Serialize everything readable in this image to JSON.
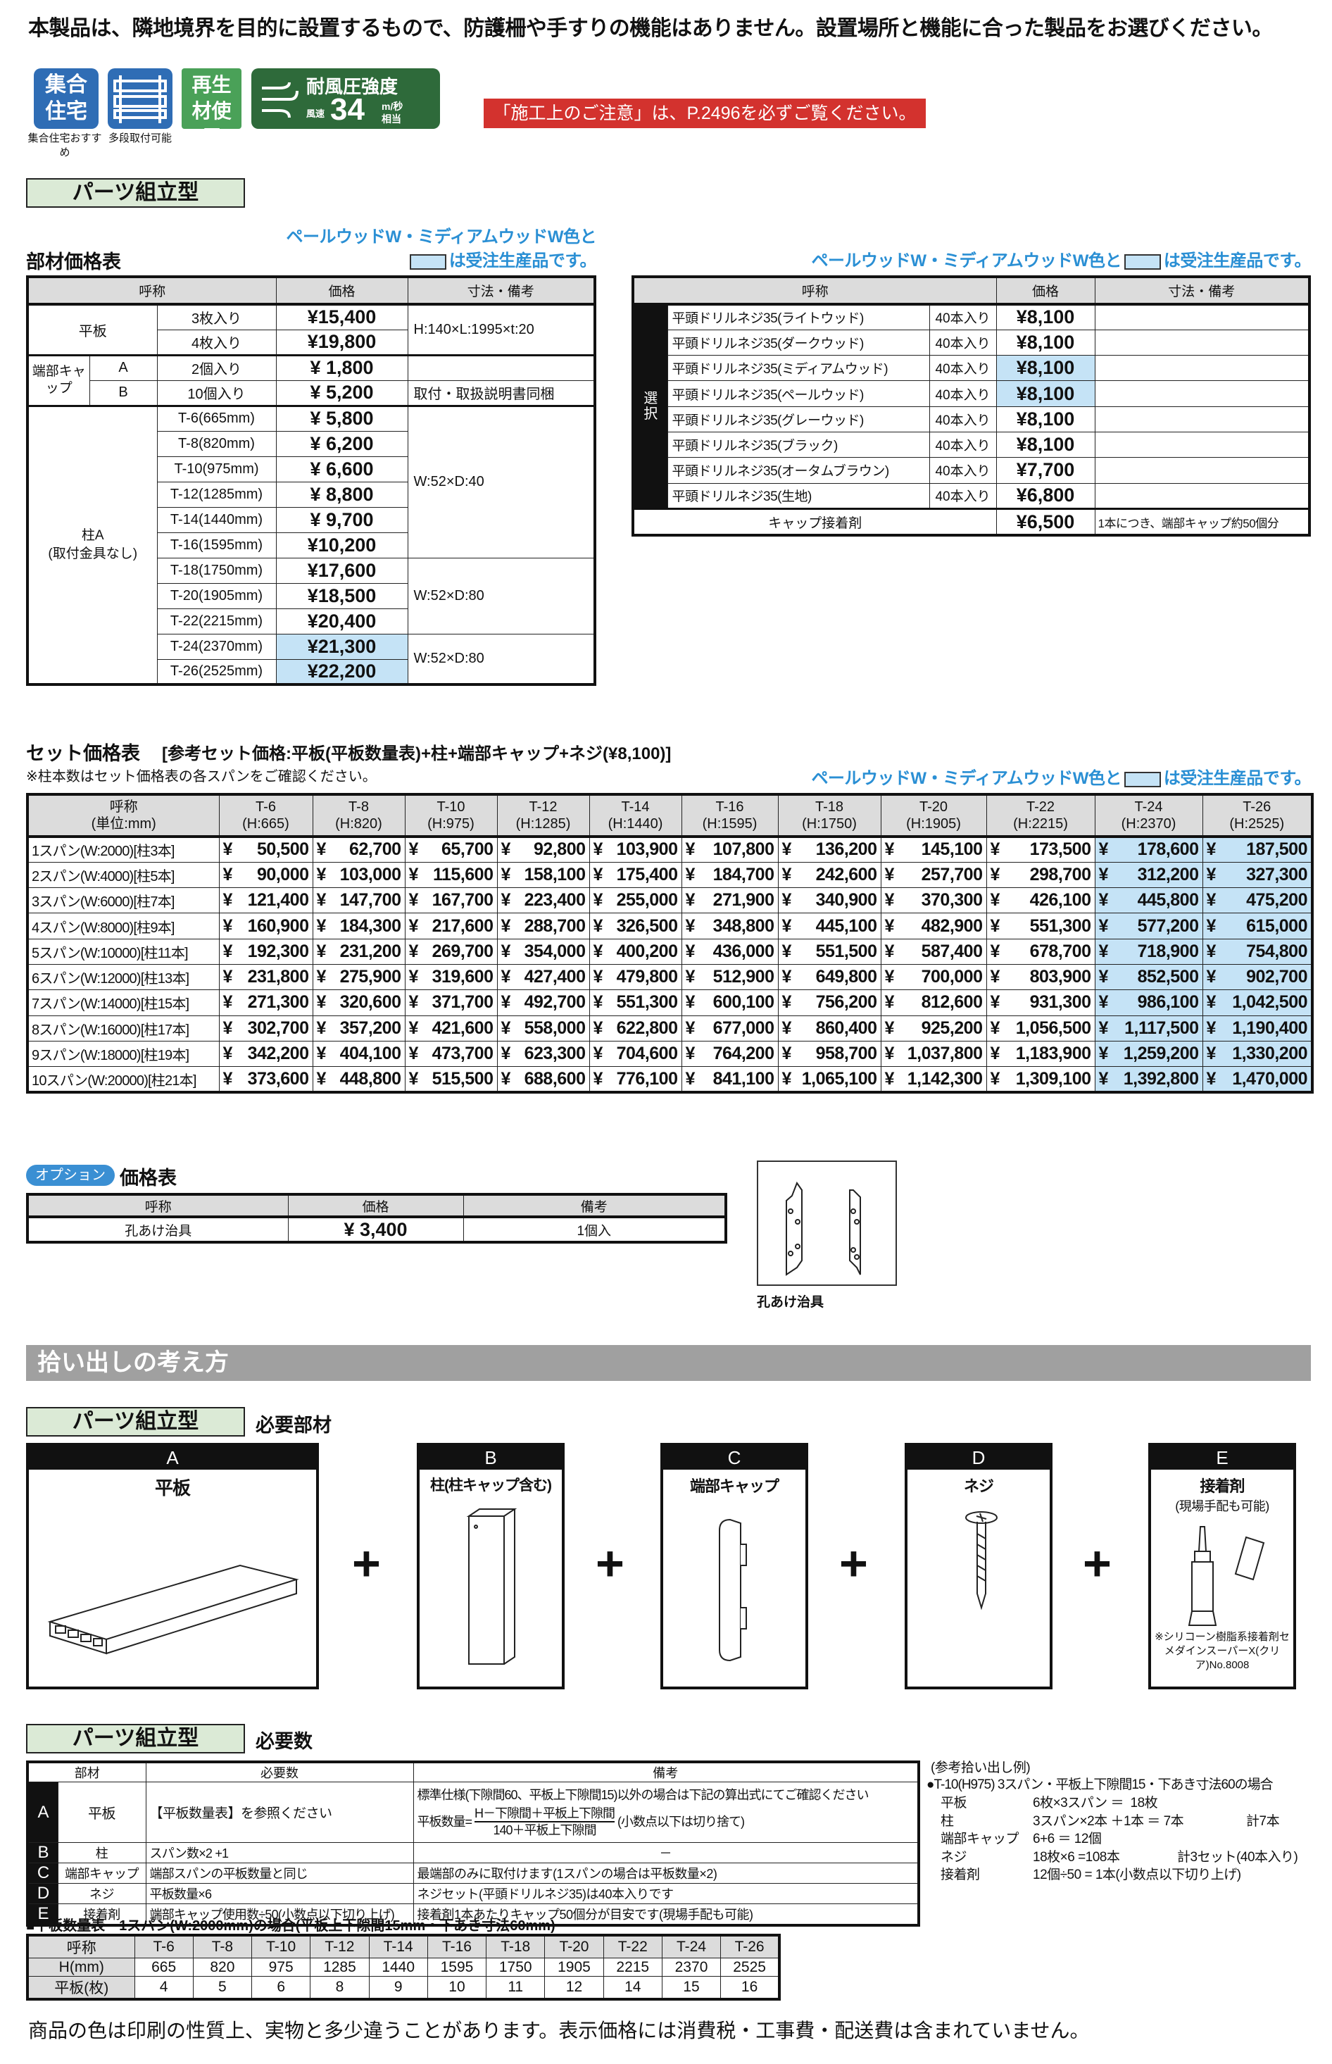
{
  "header": {
    "notice": "本製品は、隣地境界を目的に設置するもので、防護柵や手すりの機能はありません。設置場所と機能に合った製品をお選びください。"
  },
  "badges": {
    "collective": {
      "text": "集合住宅",
      "caption": "集合住宅おすすめ",
      "color": "#2f6db5"
    },
    "multistage": {
      "caption": "多段取付可能",
      "color": "#2f6db5"
    },
    "recycled": {
      "text": "再生材使用",
      "color": "#4aa158"
    },
    "wind": {
      "title": "耐風圧強度",
      "speed_label": "風速",
      "value": "34",
      "unit": "m/秒",
      "suffix": "相当",
      "color": "#2e6a3a"
    }
  },
  "caution": "「施工上のご注意」は、P.2496を必ずご覧ください。",
  "section_label": "パーツ組立型",
  "made_to_order_note": {
    "line1": "ペールウッドW・ミディアムウッドW色と",
    "line2": "は受注生産品です。",
    "full": "ペールウッドW・ミディアムウッドW色と",
    "tail": "は受注生産品です。"
  },
  "parts_table": {
    "title": "部材価格表",
    "headers": [
      "呼称",
      "価格",
      "寸法・備考"
    ],
    "flat": {
      "name": "平板",
      "rows": [
        {
          "spec": "3枚入り",
          "price": "¥15,400"
        },
        {
          "spec": "4枚入り",
          "price": "¥19,800"
        }
      ],
      "note": "H:140×L:1995×t:20"
    },
    "cap": {
      "name": "端部キャップ",
      "rows": [
        {
          "type": "A",
          "spec": "2個入り",
          "price": "¥ 1,800",
          "note": ""
        },
        {
          "type": "B",
          "spec": "10個入り",
          "price": "¥ 5,200",
          "note": "取付・取扱説明書同梱"
        }
      ]
    },
    "post": {
      "name": "柱A",
      "sub": "(取付金具なし)",
      "rows": [
        {
          "spec": "T-6(665mm)",
          "price": "¥ 5,800"
        },
        {
          "spec": "T-8(820mm)",
          "price": "¥ 6,200"
        },
        {
          "spec": "T-10(975mm)",
          "price": "¥ 6,600"
        },
        {
          "spec": "T-12(1285mm)",
          "price": "¥ 8,800"
        },
        {
          "spec": "T-14(1440mm)",
          "price": "¥ 9,700"
        },
        {
          "spec": "T-16(1595mm)",
          "price": "¥10,200"
        },
        {
          "spec": "T-18(1750mm)",
          "price": "¥17,600"
        },
        {
          "spec": "T-20(1905mm)",
          "price": "¥18,500"
        },
        {
          "spec": "T-22(2215mm)",
          "price": "¥20,400"
        },
        {
          "spec": "T-24(2370mm)",
          "price": "¥21,300",
          "made_to_order": true
        },
        {
          "spec": "T-26(2525mm)",
          "price": "¥22,200",
          "made_to_order": true
        }
      ],
      "notes": [
        "W:52×D:40",
        "W:52×D:80",
        "W:52×D:80"
      ]
    }
  },
  "screw_table": {
    "headers": [
      "呼称",
      "価格",
      "寸法・備考"
    ],
    "select_label": "選択",
    "rows": [
      {
        "name": "平頭ドリルネジ35(ライトウッド)",
        "qty": "40本入り",
        "price": "¥8,100"
      },
      {
        "name": "平頭ドリルネジ35(ダークウッド)",
        "qty": "40本入り",
        "price": "¥8,100"
      },
      {
        "name": "平頭ドリルネジ35(ミディアムウッド)",
        "qty": "40本入り",
        "price": "¥8,100",
        "made_to_order": true
      },
      {
        "name": "平頭ドリルネジ35(ペールウッド)",
        "qty": "40本入り",
        "price": "¥8,100",
        "made_to_order": true
      },
      {
        "name": "平頭ドリルネジ35(グレーウッド)",
        "qty": "40本入り",
        "price": "¥8,100"
      },
      {
        "name": "平頭ドリルネジ35(ブラック)",
        "qty": "40本入り",
        "price": "¥8,100"
      },
      {
        "name": "平頭ドリルネジ35(オータムブラウン)",
        "qty": "40本入り",
        "price": "¥7,700"
      },
      {
        "name": "平頭ドリルネジ35(生地)",
        "qty": "40本入り",
        "price": "¥6,800"
      }
    ],
    "adhesive": {
      "name": "キャップ接着剤",
      "price": "¥6,500",
      "note": "1本につき、端部キャップ約50個分"
    }
  },
  "set_table": {
    "title": "セット価格表",
    "subtitle": "[参考セット価格:平板(平板数量表)+柱+端部キャップ+ネジ(¥8,100)]",
    "footnote": "※柱本数はセット価格表の各スパンをご確認ください。",
    "corner": [
      "呼称",
      "(単位:mm)"
    ],
    "columns": [
      [
        "T-6",
        "(H:665)"
      ],
      [
        "T-8",
        "(H:820)"
      ],
      [
        "T-10",
        "(H:975)"
      ],
      [
        "T-12",
        "(H:1285)"
      ],
      [
        "T-14",
        "(H:1440)"
      ],
      [
        "T-16",
        "(H:1595)"
      ],
      [
        "T-18",
        "(H:1750)"
      ],
      [
        "T-20",
        "(H:1905)"
      ],
      [
        "T-22",
        "(H:2215)"
      ],
      [
        "T-24",
        "(H:2370)"
      ],
      [
        "T-26",
        "(H:2525)"
      ]
    ],
    "made_to_order_columns": [
      "T-24",
      "T-26"
    ],
    "rows": [
      {
        "label": "1スパン(W:2000)[柱3本]",
        "values": [
          "50,500",
          "62,700",
          "65,700",
          "92,800",
          "103,900",
          "107,800",
          "136,200",
          "145,100",
          "173,500",
          "178,600",
          "187,500"
        ]
      },
      {
        "label": "2スパン(W:4000)[柱5本]",
        "values": [
          "90,000",
          "103,000",
          "115,600",
          "158,100",
          "175,400",
          "184,700",
          "242,600",
          "257,700",
          "298,700",
          "312,200",
          "327,300"
        ]
      },
      {
        "label": "3スパン(W:6000)[柱7本]",
        "values": [
          "121,400",
          "147,700",
          "167,700",
          "223,400",
          "255,000",
          "271,900",
          "340,900",
          "370,300",
          "426,100",
          "445,800",
          "475,200"
        ]
      },
      {
        "label": "4スパン(W:8000)[柱9本]",
        "values": [
          "160,900",
          "184,300",
          "217,600",
          "288,700",
          "326,500",
          "348,800",
          "445,100",
          "482,900",
          "551,300",
          "577,200",
          "615,000"
        ]
      },
      {
        "label": "5スパン(W:10000)[柱11本]",
        "values": [
          "192,300",
          "231,200",
          "269,700",
          "354,000",
          "400,200",
          "436,000",
          "551,500",
          "587,400",
          "678,700",
          "718,900",
          "754,800"
        ]
      },
      {
        "label": "6スパン(W:12000)[柱13本]",
        "values": [
          "231,800",
          "275,900",
          "319,600",
          "427,400",
          "479,800",
          "512,900",
          "649,800",
          "700,000",
          "803,900",
          "852,500",
          "902,700"
        ]
      },
      {
        "label": "7スパン(W:14000)[柱15本]",
        "values": [
          "271,300",
          "320,600",
          "371,700",
          "492,700",
          "551,300",
          "600,100",
          "756,200",
          "812,600",
          "931,300",
          "986,100",
          "1,042,500"
        ]
      },
      {
        "label": "8スパン(W:16000)[柱17本]",
        "values": [
          "302,700",
          "357,200",
          "421,600",
          "558,000",
          "622,800",
          "677,000",
          "860,400",
          "925,200",
          "1,056,500",
          "1,117,500",
          "1,190,400"
        ]
      },
      {
        "label": "9スパン(W:18000)[柱19本]",
        "values": [
          "342,200",
          "404,100",
          "473,700",
          "623,300",
          "704,600",
          "764,200",
          "958,700",
          "1,037,800",
          "1,183,900",
          "1,259,200",
          "1,330,200"
        ]
      },
      {
        "label": "10スパン(W:20000)[柱21本]",
        "values": [
          "373,600",
          "448,800",
          "515,500",
          "688,600",
          "776,100",
          "841,100",
          "1,065,100",
          "1,142,300",
          "1,309,100",
          "1,392,800",
          "1,470,000"
        ]
      }
    ]
  },
  "option": {
    "tag": "オプション",
    "title": "価格表",
    "headers": [
      "呼称",
      "価格",
      "備考"
    ],
    "row": {
      "name": "孔あけ治具",
      "price": "¥ 3,400",
      "note": "1個入"
    },
    "image_caption": "孔あけ治具"
  },
  "takeoff": {
    "banner": "拾い出しの考え方",
    "required_parts_title": "必要部材",
    "parts": [
      {
        "letter": "A",
        "name": "平板"
      },
      {
        "letter": "B",
        "name": "柱(柱キャップ含む)"
      },
      {
        "letter": "C",
        "name": "端部キャップ"
      },
      {
        "letter": "D",
        "name": "ネジ"
      },
      {
        "letter": "E",
        "name": "接着剤",
        "sub": "(現場手配も可能)",
        "note": "※シリコーン樹脂系接着剤セメダインスーパーX(クリア)No.8008"
      }
    ],
    "plus": "+",
    "required_qty_title": "必要数",
    "req_table": {
      "headers": [
        "部材",
        "必要数",
        "備考"
      ],
      "rows": [
        {
          "letter": "A",
          "part": "平板",
          "qty": "【平板数量表】を参照ください",
          "note": "標準仕様(下隙間60、平板上下隙間15)以外の場合は下記の算出式にてご確認ください",
          "formula": {
            "lhs": "平板数量=",
            "num": "H－下隙間＋平板上下隙間",
            "den": "140＋平板上下隙間",
            "tail": "(小数点以下は切り捨て)"
          }
        },
        {
          "letter": "B",
          "part": "柱",
          "qty": "スパン数×2 +1",
          "note": "－"
        },
        {
          "letter": "C",
          "part": "端部キャップ",
          "qty": "端部スパンの平板数量と同じ",
          "note": "最端部のみに取付けます(1スパンの場合は平板数量×2)"
        },
        {
          "letter": "D",
          "part": "ネジ",
          "qty": "平板数量×6",
          "note": "ネジセット(平頭ドリルネジ35)は40本入りです"
        },
        {
          "letter": "E",
          "part": "接着剤",
          "qty": "端部キャップ使用数÷50(小数点以下切り上げ)",
          "note": "接着剤1本あたりキャップ50個分が目安です(現場手配も可能)"
        }
      ]
    },
    "example": {
      "title": "(参考拾い出し例)",
      "case": "●T-10(H975) 3スパン・平板上下隙間15・下あき寸法60の場合",
      "lines": [
        {
          "item": "平板",
          "calc": "6枚×3スパン ＝  18枚",
          "total": ""
        },
        {
          "item": "柱",
          "calc": "3スパン×2本 ＋1本 ＝ 7本",
          "total": "計7本"
        },
        {
          "item": "端部キャップ",
          "calc": "6+6 ＝ 12個",
          "total": ""
        },
        {
          "item": "ネジ",
          "calc": "18枚×6 =108本",
          "total": "計3セット(40本入り)"
        },
        {
          "item": "接着剤",
          "calc": "12個÷50 = 1本(小数点以下切り上げ)",
          "total": ""
        }
      ]
    },
    "flat_qty": {
      "title": "■平板数量表　1スパン(W:2000mm)の場合(平板上下隙間15mm・下あき寸法60mm)",
      "row_labels": [
        "呼称",
        "H(mm)",
        "平板(枚)"
      ],
      "names": [
        "T-6",
        "T-8",
        "T-10",
        "T-12",
        "T-14",
        "T-16",
        "T-18",
        "T-20",
        "T-22",
        "T-24",
        "T-26"
      ],
      "heights": [
        "665",
        "820",
        "975",
        "1285",
        "1440",
        "1595",
        "1750",
        "1905",
        "2215",
        "2370",
        "2525"
      ],
      "boards": [
        "4",
        "5",
        "6",
        "8",
        "9",
        "10",
        "11",
        "12",
        "14",
        "15",
        "16"
      ]
    }
  },
  "footer": "商品の色は印刷の性質上、実物と多少違うことがあります。表示価格には消費税・工事費・配送費は含まれていません。"
}
